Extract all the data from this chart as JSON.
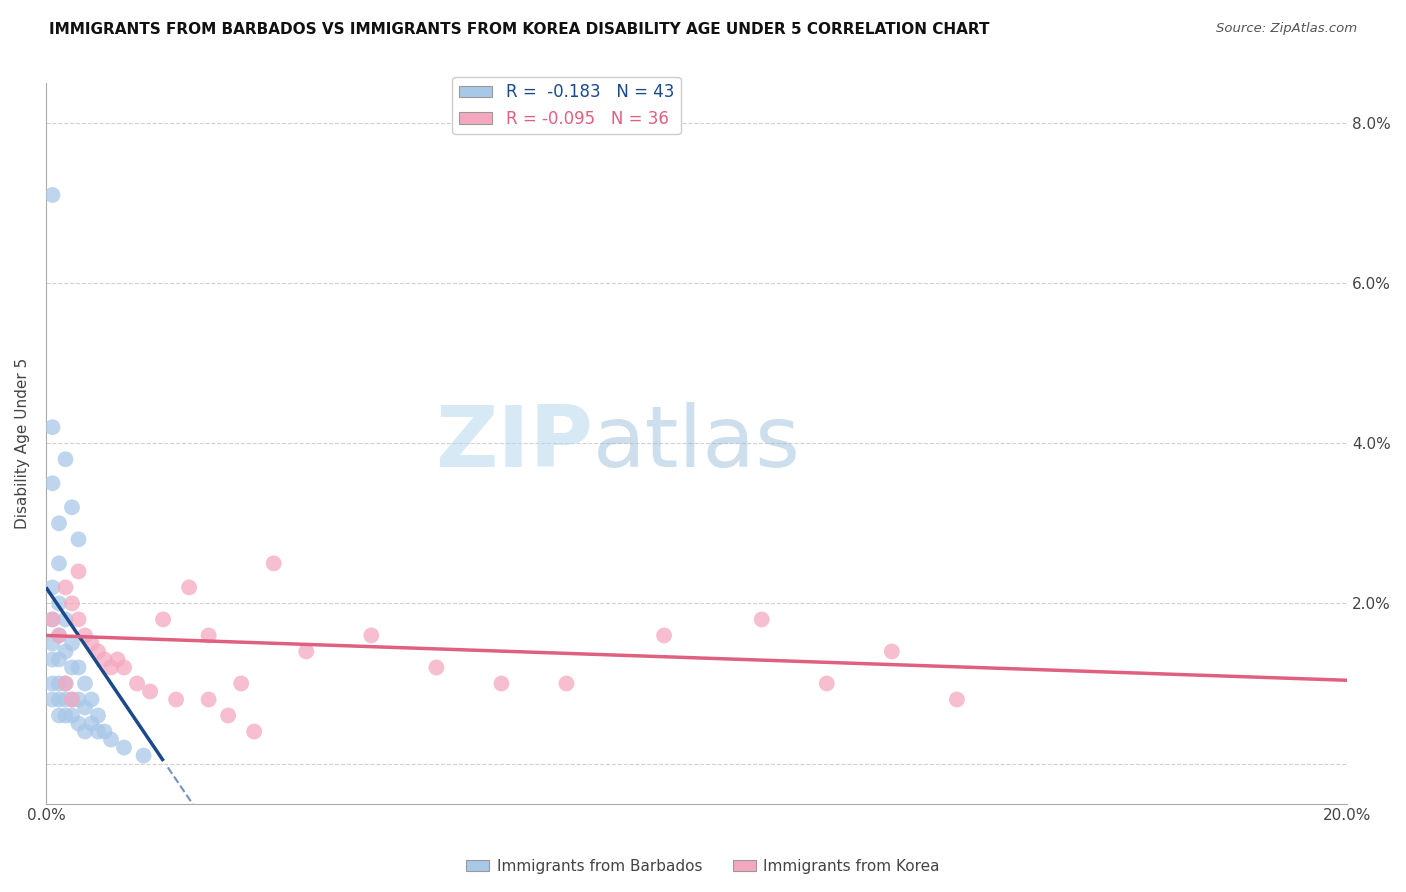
{
  "title": "IMMIGRANTS FROM BARBADOS VS IMMIGRANTS FROM KOREA DISABILITY AGE UNDER 5 CORRELATION CHART",
  "source": "Source: ZipAtlas.com",
  "ylabel": "Disability Age Under 5",
  "xlim": [
    0.0,
    0.2
  ],
  "ylim": [
    -0.005,
    0.085
  ],
  "ylim_display": [
    0.0,
    0.085
  ],
  "xticks": [
    0.0,
    0.02,
    0.04,
    0.06,
    0.08,
    0.1,
    0.12,
    0.14,
    0.16,
    0.18,
    0.2
  ],
  "yticks": [
    0.0,
    0.02,
    0.04,
    0.06,
    0.08
  ],
  "ytick_labels": [
    "",
    "2.0%",
    "4.0%",
    "6.0%",
    "8.0%"
  ],
  "xtick_labels": [
    "0.0%",
    "",
    "",
    "",
    "",
    "",
    "",
    "",
    "",
    "",
    "20.0%"
  ],
  "barbados_R": -0.183,
  "barbados_N": 43,
  "korea_R": -0.095,
  "korea_N": 36,
  "barbados_color": "#a8c8e8",
  "korea_color": "#f4a8c0",
  "barbados_line_color": "#1a4a8a",
  "korea_line_color": "#e06080",
  "barbados_x": [
    0.001,
    0.001,
    0.001,
    0.001,
    0.001,
    0.001,
    0.001,
    0.002,
    0.002,
    0.002,
    0.002,
    0.002,
    0.002,
    0.003,
    0.003,
    0.003,
    0.003,
    0.003,
    0.004,
    0.004,
    0.004,
    0.004,
    0.005,
    0.005,
    0.005,
    0.006,
    0.006,
    0.006,
    0.007,
    0.007,
    0.008,
    0.008,
    0.009,
    0.01,
    0.012,
    0.015,
    0.001,
    0.002,
    0.003,
    0.004,
    0.005,
    0.001,
    0.002
  ],
  "barbados_y": [
    0.071,
    0.022,
    0.018,
    0.015,
    0.013,
    0.01,
    0.008,
    0.02,
    0.016,
    0.013,
    0.01,
    0.008,
    0.006,
    0.018,
    0.014,
    0.01,
    0.008,
    0.006,
    0.015,
    0.012,
    0.008,
    0.006,
    0.012,
    0.008,
    0.005,
    0.01,
    0.007,
    0.004,
    0.008,
    0.005,
    0.006,
    0.004,
    0.004,
    0.003,
    0.002,
    0.001,
    0.035,
    0.03,
    0.038,
    0.032,
    0.028,
    0.042,
    0.025
  ],
  "korea_x": [
    0.001,
    0.002,
    0.003,
    0.004,
    0.005,
    0.006,
    0.007,
    0.008,
    0.009,
    0.01,
    0.011,
    0.012,
    0.014,
    0.016,
    0.018,
    0.02,
    0.022,
    0.025,
    0.03,
    0.035,
    0.04,
    0.05,
    0.06,
    0.07,
    0.08,
    0.095,
    0.11,
    0.12,
    0.13,
    0.14,
    0.003,
    0.004,
    0.005,
    0.025,
    0.028,
    0.032
  ],
  "korea_y": [
    0.018,
    0.016,
    0.022,
    0.02,
    0.018,
    0.016,
    0.015,
    0.014,
    0.013,
    0.012,
    0.013,
    0.012,
    0.01,
    0.009,
    0.018,
    0.008,
    0.022,
    0.016,
    0.01,
    0.025,
    0.014,
    0.016,
    0.012,
    0.01,
    0.01,
    0.016,
    0.018,
    0.01,
    0.014,
    0.008,
    0.01,
    0.008,
    0.024,
    0.008,
    0.006,
    0.004
  ]
}
